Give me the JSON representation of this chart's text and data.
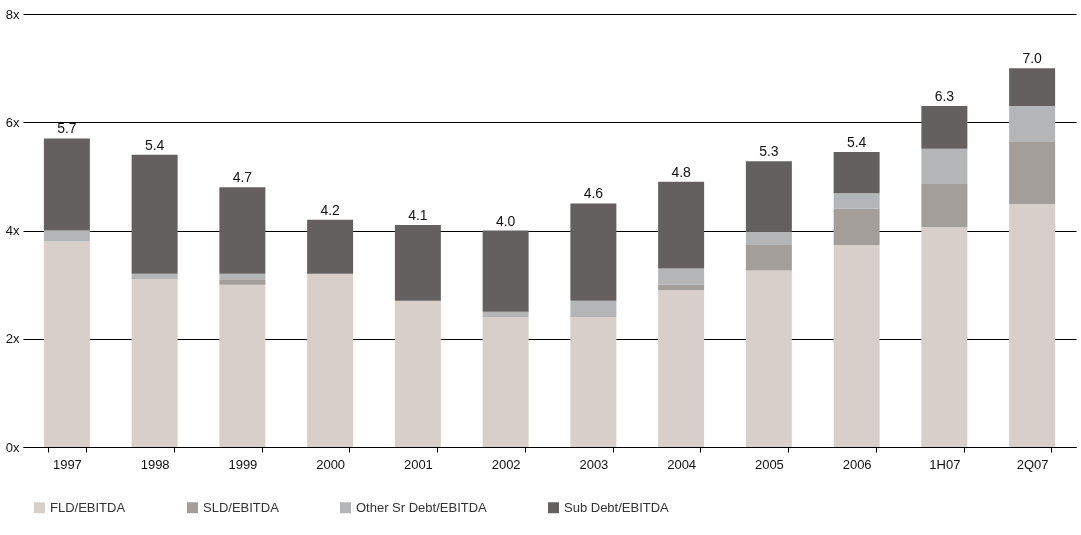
{
  "chart_data": {
    "type": "bar",
    "stacked": true,
    "categories": [
      "1997",
      "1998",
      "1999",
      "2000",
      "2001",
      "2002",
      "2003",
      "2004",
      "2005",
      "2006",
      "1H07",
      "2Q07"
    ],
    "series": [
      {
        "name": "FLD/EBITDA",
        "color": "#d8cfca",
        "values": [
          3.8,
          3.1,
          3.0,
          3.2,
          2.7,
          2.4,
          2.4,
          2.9,
          3.26,
          3.73,
          4.06,
          4.49
        ]
      },
      {
        "name": "SLD/EBITDA",
        "color": "#a39e99",
        "values": [
          0,
          0,
          0.1,
          0,
          0,
          0,
          0,
          0.1,
          0.47,
          0.67,
          0.8,
          1.16
        ]
      },
      {
        "name": "Other Sr Debt/EBITDA",
        "color": "#b4b5b7",
        "values": [
          0.2,
          0.1,
          0.1,
          0,
          0,
          0.1,
          0.3,
          0.3,
          0.25,
          0.29,
          0.65,
          0.65
        ]
      },
      {
        "name": "Sub Debt/EBITDA",
        "color": "#656060",
        "values": [
          1.7,
          2.2,
          1.6,
          1.0,
          1.4,
          1.5,
          1.8,
          1.6,
          1.3,
          0.76,
          0.79,
          0.7
        ]
      }
    ],
    "totals": [
      "5.7",
      "5.4",
      "4.7",
      "4.2",
      "4.1",
      "4.0",
      "4.6",
      "4.8",
      "5.3",
      "5.4",
      "6.3",
      "7.0"
    ],
    "ylim": [
      0,
      8
    ],
    "yticks": [
      {
        "value": 0,
        "label": "0x"
      },
      {
        "value": 2,
        "label": "2x"
      },
      {
        "value": 4,
        "label": "4x"
      },
      {
        "value": 6,
        "label": "6x"
      },
      {
        "value": 8,
        "label": "8x"
      }
    ],
    "grid": "y",
    "legend": "bottom"
  }
}
